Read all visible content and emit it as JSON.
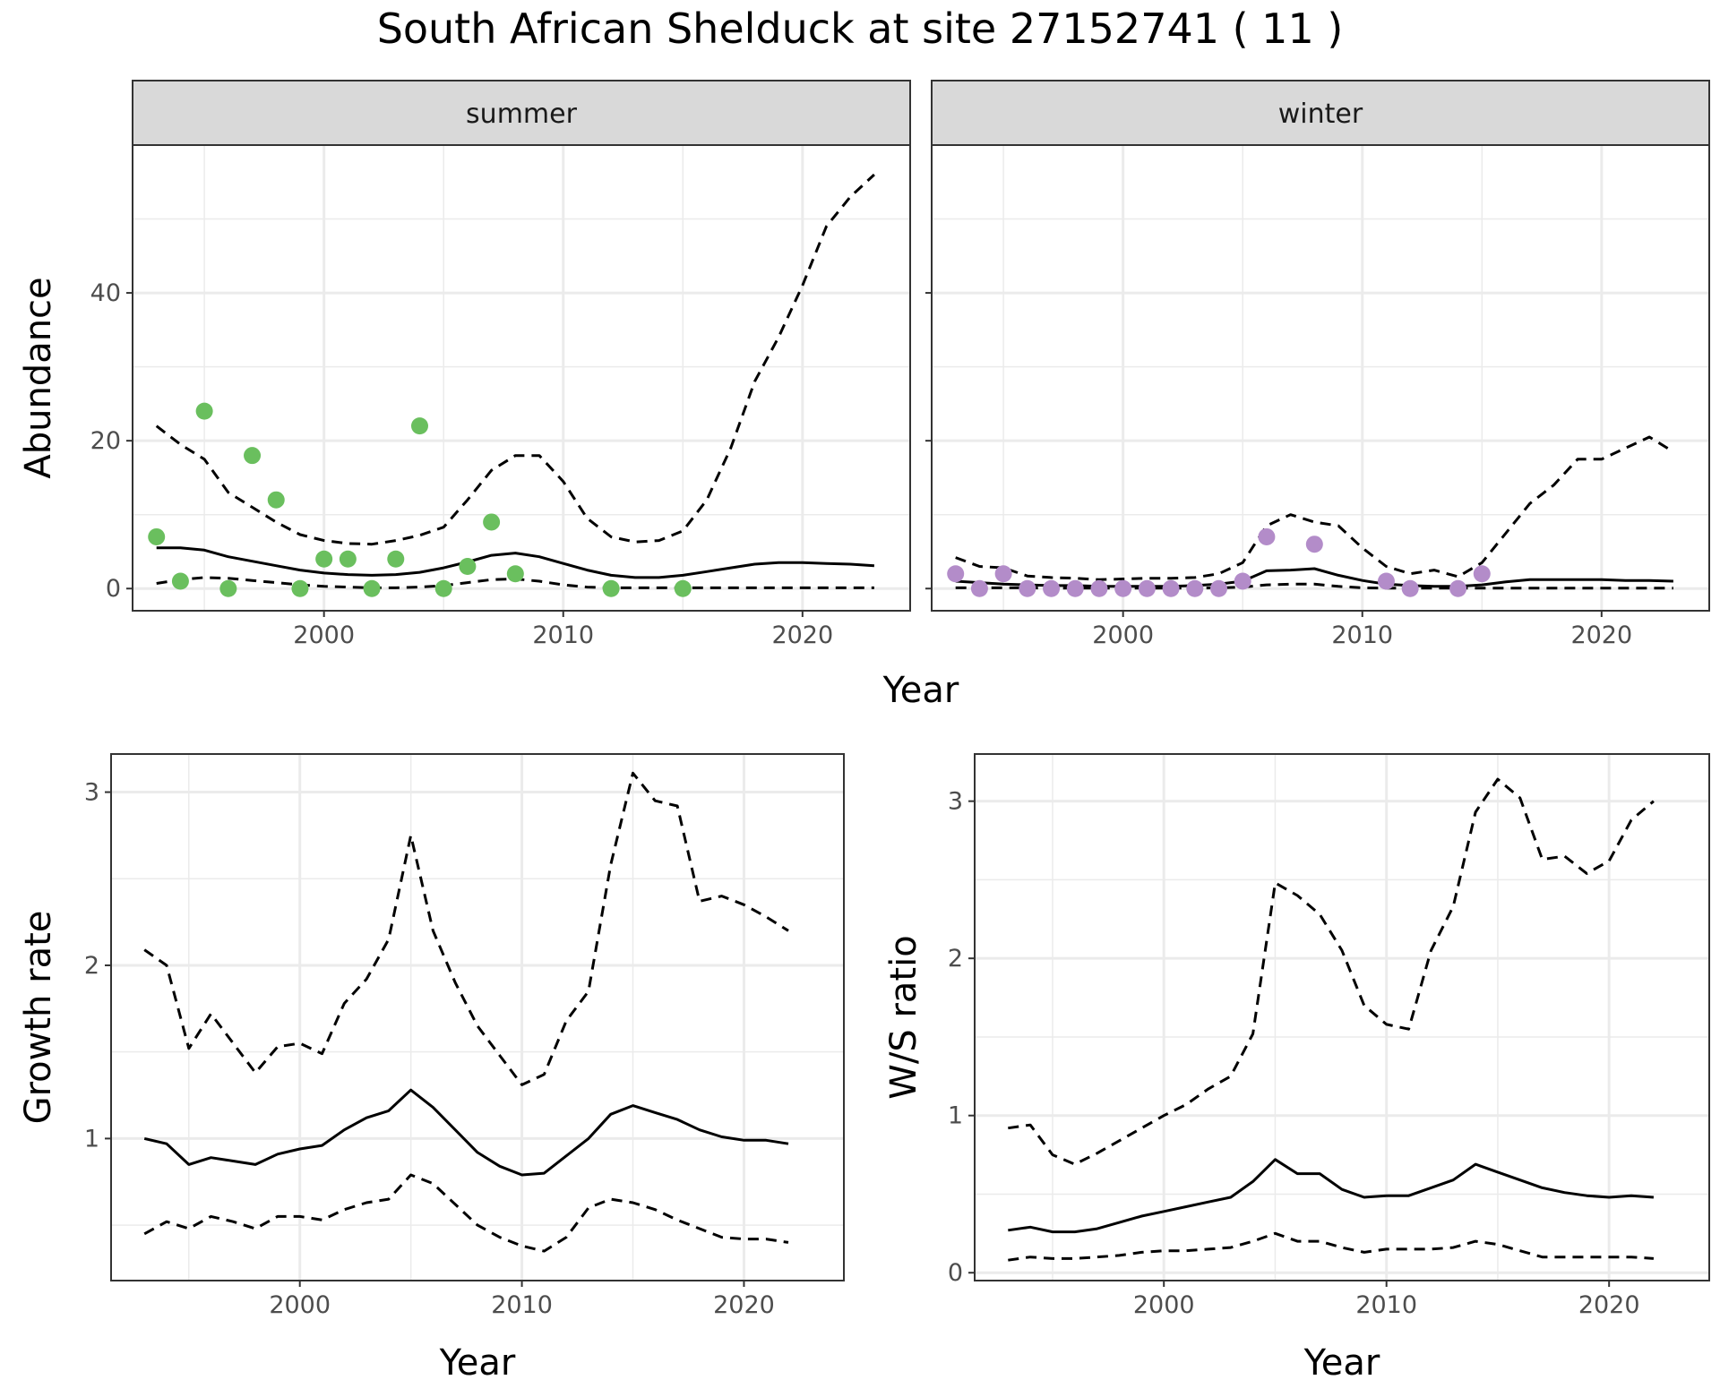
{
  "title": "South African Shelduck at site 27152741 ( 11 )",
  "colors": {
    "summer_points": "#6abf5e",
    "winter_points": "#b38cc9",
    "line": "#000000",
    "strip_bg": "#d9d9d9",
    "grid": "#ebebeb",
    "frame": "#333333"
  },
  "chart_data": [
    {
      "id": "abundance",
      "type": "line",
      "facet_labels": [
        "summer",
        "winter"
      ],
      "xlabel": "Year",
      "ylabel": "Abundance",
      "xlim": [
        1992,
        2024.5
      ],
      "ylim": [
        -3,
        60
      ],
      "x_ticks": [
        2000,
        2010,
        2020
      ],
      "y_ticks": [
        0,
        20,
        40
      ],
      "grid": true,
      "line_style": {
        "mean": "solid",
        "lower": "dashed",
        "upper": "dashed"
      },
      "panels": [
        {
          "facet": "summer",
          "points": {
            "x": [
              1993,
              1994,
              1995,
              1996,
              1997,
              1998,
              1999,
              2000,
              2001,
              2002,
              2003,
              2004,
              2005,
              2006,
              2007,
              2008,
              2012,
              2015
            ],
            "y": [
              7,
              1,
              24,
              0,
              18,
              12,
              0,
              4,
              4,
              0,
              4,
              22,
              0,
              3,
              9,
              2,
              0,
              0
            ]
          },
          "mean": {
            "x": [
              1993,
              1994,
              1995,
              1996,
              1997,
              1998,
              1999,
              2000,
              2001,
              2002,
              2003,
              2004,
              2005,
              2006,
              2007,
              2008,
              2009,
              2010,
              2011,
              2012,
              2013,
              2014,
              2015,
              2016,
              2017,
              2018,
              2019,
              2020,
              2021,
              2022,
              2023
            ],
            "y": [
              5.5,
              5.5,
              5.2,
              4.3,
              3.7,
              3.1,
              2.5,
              2.1,
              1.9,
              1.8,
              1.9,
              2.2,
              2.8,
              3.6,
              4.5,
              4.8,
              4.3,
              3.4,
              2.5,
              1.8,
              1.5,
              1.5,
              1.8,
              2.3,
              2.8,
              3.3,
              3.5,
              3.5,
              3.4,
              3.3,
              3.1
            ]
          },
          "lower": {
            "x": [
              1993,
              1994,
              1995,
              1996,
              1997,
              1998,
              1999,
              2000,
              2001,
              2002,
              2003,
              2004,
              2005,
              2006,
              2007,
              2008,
              2009,
              2010,
              2011,
              2012,
              2013,
              2014,
              2015,
              2016,
              2017,
              2018,
              2019,
              2020,
              2021,
              2022,
              2023
            ],
            "y": [
              0.7,
              1.2,
              1.5,
              1.4,
              1.1,
              0.8,
              0.5,
              0.3,
              0.2,
              0.1,
              0.1,
              0.2,
              0.4,
              0.8,
              1.2,
              1.3,
              1.0,
              0.5,
              0.2,
              0.1,
              0.1,
              0.1,
              0.1,
              0.1,
              0.1,
              0.1,
              0.1,
              0.1,
              0.1,
              0.1,
              0.1
            ]
          },
          "upper": {
            "x": [
              1993,
              1994,
              1995,
              1996,
              1997,
              1998,
              1999,
              2000,
              2001,
              2002,
              2003,
              2004,
              2005,
              2006,
              2007,
              2008,
              2009,
              2010,
              2011,
              2012,
              2013,
              2014,
              2015,
              2016,
              2017,
              2018,
              2019,
              2020,
              2021,
              2022,
              2023
            ],
            "y": [
              22,
              19.5,
              17.5,
              13,
              11,
              9,
              7.3,
              6.5,
              6.1,
              6,
              6.5,
              7.2,
              8.3,
              12,
              16,
              18,
              18,
              14.5,
              9.5,
              7,
              6.3,
              6.5,
              7.8,
              12,
              19,
              28,
              34,
              41,
              49,
              53,
              56
            ]
          }
        },
        {
          "facet": "winter",
          "points": {
            "x": [
              1993,
              1994,
              1995,
              1996,
              1997,
              1998,
              1999,
              2000,
              2001,
              2002,
              2003,
              2004,
              2005,
              2006,
              2008,
              2011,
              2012,
              2014,
              2015
            ],
            "y": [
              2,
              0,
              2,
              0,
              0,
              0,
              0,
              0,
              0,
              0,
              0,
              0,
              1,
              7,
              6,
              1,
              0,
              0,
              2
            ]
          },
          "mean": {
            "x": [
              1993,
              1994,
              1995,
              1996,
              1997,
              1998,
              1999,
              2000,
              2001,
              2002,
              2003,
              2004,
              2005,
              2006,
              2007,
              2008,
              2009,
              2010,
              2011,
              2012,
              2013,
              2014,
              2015,
              2016,
              2017,
              2018,
              2019,
              2020,
              2021,
              2022,
              2023
            ],
            "y": [
              1.0,
              0.8,
              0.6,
              0.5,
              0.4,
              0.4,
              0.3,
              0.3,
              0.3,
              0.3,
              0.4,
              0.6,
              1.0,
              2.4,
              2.5,
              2.7,
              1.8,
              1.1,
              0.6,
              0.4,
              0.3,
              0.3,
              0.5,
              0.9,
              1.2,
              1.2,
              1.2,
              1.2,
              1.1,
              1.1,
              1.0
            ]
          },
          "lower": {
            "x": [
              1993,
              1994,
              1995,
              1996,
              1997,
              1998,
              1999,
              2000,
              2001,
              2002,
              2003,
              2004,
              2005,
              2006,
              2007,
              2008,
              2009,
              2010,
              2011,
              2012,
              2013,
              2014,
              2015,
              2016,
              2017,
              2018,
              2019,
              2020,
              2021,
              2022,
              2023
            ],
            "y": [
              0.1,
              0.1,
              0.1,
              0.1,
              0.05,
              0.05,
              0.05,
              0.05,
              0.05,
              0.05,
              0.05,
              0.1,
              0.2,
              0.5,
              0.6,
              0.6,
              0.3,
              0.1,
              0.05,
              0.05,
              0.05,
              0.05,
              0.05,
              0.05,
              0.05,
              0.05,
              0.05,
              0.05,
              0.05,
              0.05,
              0.05
            ]
          },
          "upper": {
            "x": [
              1993,
              1994,
              1995,
              1996,
              1997,
              1998,
              1999,
              2000,
              2001,
              2002,
              2003,
              2004,
              2005,
              2006,
              2007,
              2008,
              2009,
              2010,
              2011,
              2012,
              2013,
              2014,
              2015,
              2016,
              2017,
              2018,
              2019,
              2020,
              2021,
              2022,
              2023
            ],
            "y": [
              4.2,
              3,
              2.8,
              1.7,
              1.5,
              1.4,
              1.2,
              1.3,
              1.4,
              1.4,
              1.5,
              2.0,
              3.5,
              8.5,
              10,
              9,
              8.5,
              5.5,
              3.0,
              2.0,
              2.5,
              1.6,
              3.5,
              7.5,
              11.5,
              14,
              17.5,
              17.5,
              19,
              20.5,
              18.5
            ]
          }
        }
      ]
    },
    {
      "id": "growth_rate",
      "type": "line",
      "xlabel": "Year",
      "ylabel": "Growth rate",
      "xlim": [
        1991.5,
        2024.5
      ],
      "ylim": [
        0.18,
        3.22
      ],
      "x_ticks": [
        2000,
        2010,
        2020
      ],
      "y_ticks": [
        1,
        2,
        3
      ],
      "grid": true,
      "line_style": {
        "mean": "solid",
        "lower": "dashed",
        "upper": "dashed"
      },
      "mean": {
        "x": [
          1993,
          1994,
          1995,
          1996,
          1997,
          1998,
          1999,
          2000,
          2001,
          2002,
          2003,
          2004,
          2005,
          2006,
          2007,
          2008,
          2009,
          2010,
          2011,
          2012,
          2013,
          2014,
          2015,
          2016,
          2017,
          2018,
          2019,
          2020,
          2021,
          2022
        ],
        "y": [
          1.0,
          0.97,
          0.85,
          0.89,
          0.87,
          0.85,
          0.91,
          0.94,
          0.96,
          1.05,
          1.12,
          1.16,
          1.28,
          1.18,
          1.05,
          0.92,
          0.84,
          0.79,
          0.8,
          0.9,
          1.0,
          1.14,
          1.19,
          1.15,
          1.11,
          1.05,
          1.01,
          0.99,
          0.99,
          0.97
        ]
      },
      "lower": {
        "x": [
          1993,
          1994,
          1995,
          1996,
          1997,
          1998,
          1999,
          2000,
          2001,
          2002,
          2003,
          2004,
          2005,
          2006,
          2007,
          2008,
          2009,
          2010,
          2011,
          2012,
          2013,
          2014,
          2015,
          2016,
          2017,
          2018,
          2019,
          2020,
          2021,
          2022
        ],
        "y": [
          0.45,
          0.52,
          0.48,
          0.55,
          0.52,
          0.48,
          0.55,
          0.55,
          0.53,
          0.59,
          0.63,
          0.65,
          0.79,
          0.74,
          0.62,
          0.5,
          0.43,
          0.38,
          0.35,
          0.43,
          0.6,
          0.65,
          0.63,
          0.59,
          0.53,
          0.48,
          0.43,
          0.42,
          0.42,
          0.4
        ]
      },
      "upper": {
        "x": [
          1993,
          1994,
          1995,
          1996,
          1997,
          1998,
          1999,
          2000,
          2001,
          2002,
          2003,
          2004,
          2005,
          2006,
          2007,
          2008,
          2009,
          2010,
          2011,
          2012,
          2013,
          2014,
          2015,
          2016,
          2017,
          2018,
          2019,
          2020,
          2021,
          2022
        ],
        "y": [
          2.09,
          2.0,
          1.52,
          1.72,
          1.55,
          1.38,
          1.53,
          1.55,
          1.49,
          1.78,
          1.92,
          2.15,
          2.75,
          2.2,
          1.9,
          1.65,
          1.48,
          1.31,
          1.37,
          1.68,
          1.85,
          2.58,
          3.11,
          2.95,
          2.92,
          2.37,
          2.4,
          2.35,
          2.28,
          2.2
        ]
      }
    },
    {
      "id": "ws_ratio",
      "type": "line",
      "xlabel": "Year",
      "ylabel": "W/S ratio",
      "xlim": [
        1991.5,
        2024.5
      ],
      "ylim": [
        -0.05,
        3.3
      ],
      "x_ticks": [
        2000,
        2010,
        2020
      ],
      "y_ticks": [
        0,
        1,
        2,
        3
      ],
      "grid": true,
      "line_style": {
        "mean": "solid",
        "lower": "dashed",
        "upper": "dashed"
      },
      "mean": {
        "x": [
          1993,
          1994,
          1995,
          1996,
          1997,
          1998,
          1999,
          2000,
          2001,
          2002,
          2003,
          2004,
          2005,
          2006,
          2007,
          2008,
          2009,
          2010,
          2011,
          2012,
          2013,
          2014,
          2015,
          2016,
          2017,
          2018,
          2019,
          2020,
          2021,
          2022
        ],
        "y": [
          0.27,
          0.29,
          0.26,
          0.26,
          0.28,
          0.32,
          0.36,
          0.39,
          0.42,
          0.45,
          0.48,
          0.58,
          0.72,
          0.63,
          0.63,
          0.53,
          0.48,
          0.49,
          0.49,
          0.54,
          0.59,
          0.69,
          0.64,
          0.59,
          0.54,
          0.51,
          0.49,
          0.48,
          0.49,
          0.48
        ]
      },
      "lower": {
        "x": [
          1993,
          1994,
          1995,
          1996,
          1997,
          1998,
          1999,
          2000,
          2001,
          2002,
          2003,
          2004,
          2005,
          2006,
          2007,
          2008,
          2009,
          2010,
          2011,
          2012,
          2013,
          2014,
          2015,
          2016,
          2017,
          2018,
          2019,
          2020,
          2021,
          2022
        ],
        "y": [
          0.08,
          0.1,
          0.09,
          0.09,
          0.1,
          0.11,
          0.13,
          0.14,
          0.14,
          0.15,
          0.16,
          0.2,
          0.25,
          0.2,
          0.2,
          0.16,
          0.13,
          0.15,
          0.15,
          0.15,
          0.16,
          0.2,
          0.18,
          0.14,
          0.1,
          0.1,
          0.1,
          0.1,
          0.1,
          0.09
        ]
      },
      "upper": {
        "x": [
          1993,
          1994,
          1995,
          1996,
          1997,
          1998,
          1999,
          2000,
          2001,
          2002,
          2003,
          2004,
          2005,
          2006,
          2007,
          2008,
          2009,
          2010,
          2011,
          2012,
          2013,
          2014,
          2015,
          2016,
          2017,
          2018,
          2019,
          2020,
          2021,
          2022
        ],
        "y": [
          0.92,
          0.94,
          0.75,
          0.69,
          0.76,
          0.84,
          0.92,
          1.0,
          1.07,
          1.17,
          1.25,
          1.52,
          2.48,
          2.4,
          2.28,
          2.05,
          1.7,
          1.58,
          1.55,
          2.05,
          2.33,
          2.93,
          3.14,
          3.02,
          2.63,
          2.65,
          2.54,
          2.62,
          2.88,
          3.0
        ]
      }
    }
  ]
}
